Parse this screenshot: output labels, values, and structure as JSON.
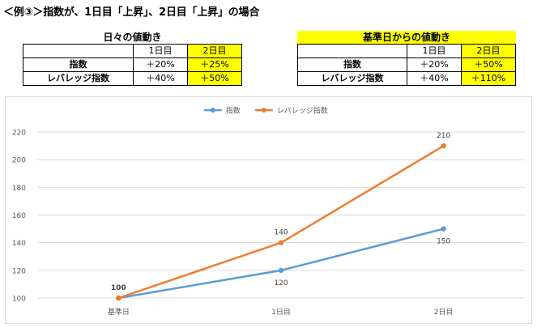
{
  "heading": "＜例③＞指数が、1日目「上昇」、2日目「上昇」の場合",
  "tables": [
    {
      "caption": "日々の値動き",
      "caption_highlight": false,
      "header": [
        "",
        "1日目",
        "2日目"
      ],
      "rows": [
        [
          "指数",
          "＋20%",
          "＋25%"
        ],
        [
          "レバレッジ指数",
          "＋40%",
          "＋50%"
        ]
      ]
    },
    {
      "caption": "基準日からの値動き",
      "caption_highlight": true,
      "header": [
        "",
        "1日目",
        "2日目"
      ],
      "rows": [
        [
          "指数",
          "＋20%",
          "＋50%"
        ],
        [
          "レバレッジ指数",
          "＋40%",
          "＋110%"
        ]
      ]
    }
  ],
  "colors": {
    "index": "#5b9bd5",
    "leveraged": "#ed7d31",
    "highlight": "#ffff00",
    "grid": "#d9d9d9",
    "axis_text": "#595959"
  },
  "chart_data": {
    "type": "line",
    "categories": [
      "基準日",
      "1日目",
      "2日目"
    ],
    "series": [
      {
        "name": "指数",
        "values": [
          100,
          120,
          150
        ]
      },
      {
        "name": "レバレッジ指数",
        "values": [
          100,
          140,
          210
        ]
      }
    ],
    "data_labels": true,
    "ylim": [
      100,
      220
    ],
    "yticks": [
      100,
      120,
      140,
      160,
      180,
      200,
      220
    ],
    "grid": true,
    "legend": "top-center",
    "title": "",
    "xlabel": "",
    "ylabel": ""
  }
}
